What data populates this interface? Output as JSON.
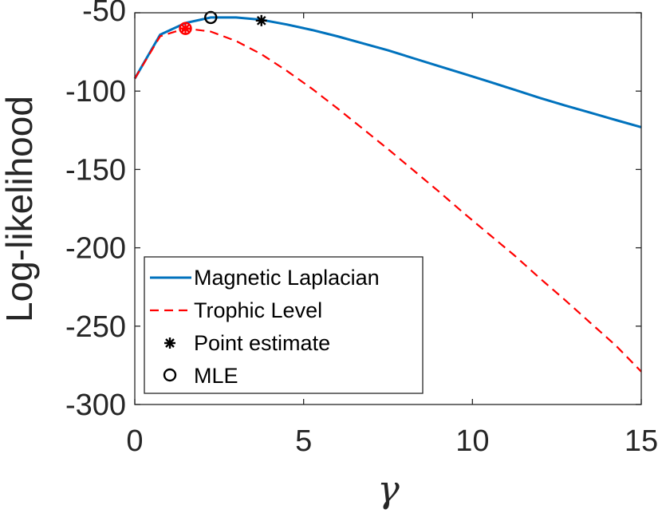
{
  "chart_data": {
    "type": "line",
    "title": "",
    "xlabel": "γ",
    "ylabel": "Log-likelihood",
    "xlim": [
      0,
      15
    ],
    "ylim": [
      -300,
      -50
    ],
    "xticks": [
      0,
      5,
      10,
      15
    ],
    "xtick_labels": [
      "0",
      "5",
      "10",
      "15"
    ],
    "yticks": [
      -50,
      -100,
      -150,
      -200,
      -250,
      -300
    ],
    "ytick_labels": [
      "-50",
      "-100",
      "-150",
      "-200",
      "-250",
      "-300"
    ],
    "grid": false,
    "legend_position": "bottom-left",
    "series": [
      {
        "name": "Magnetic Laplacian",
        "color": "#0072BD",
        "style": "solid",
        "x": [
          0,
          0.75,
          1.5,
          2.25,
          3.0,
          3.75,
          4.5,
          5.25,
          6.0,
          6.75,
          7.5,
          8.25,
          9.0,
          9.75,
          10.5,
          11.25,
          12.0,
          12.75,
          13.5,
          14.25,
          15.0
        ],
        "y": [
          -92,
          -64,
          -56.5,
          -53,
          -53,
          -54.5,
          -57.5,
          -61,
          -65,
          -69.5,
          -74,
          -79,
          -84,
          -89,
          -94,
          -99.2,
          -104.4,
          -109.2,
          -113.8,
          -118.5,
          -123
        ]
      },
      {
        "name": "Trophic Level",
        "color": "#FF0000",
        "style": "dashed",
        "x": [
          0,
          0.75,
          1.5,
          2.25,
          3.0,
          3.75,
          4.5,
          5.25,
          6.0,
          6.75,
          7.5,
          8.25,
          9.0,
          9.75,
          10.5,
          11.25,
          12.0,
          12.75,
          13.5,
          14.25,
          15.0
        ],
        "y": [
          -92,
          -65,
          -60,
          -62,
          -68,
          -76.5,
          -87,
          -98.5,
          -111,
          -124,
          -137,
          -150.5,
          -164,
          -178,
          -191.5,
          -205,
          -219.5,
          -233.5,
          -248,
          -262.5,
          -279
        ]
      }
    ],
    "markers": [
      {
        "name": "Point estimate",
        "series": "Magnetic Laplacian",
        "symbol": "asterisk",
        "color": "#000000",
        "x": 3.75,
        "y": -55
      },
      {
        "name": "MLE",
        "series": "Magnetic Laplacian",
        "symbol": "circle-open",
        "color": "#000000",
        "x": 2.25,
        "y": -53
      },
      {
        "name": "Point estimate",
        "series": "Trophic Level",
        "symbol": "asterisk",
        "color": "#FF0000",
        "x": 1.5,
        "y": -60
      },
      {
        "name": "MLE",
        "series": "Trophic Level",
        "symbol": "circle-open",
        "color": "#FF0000",
        "x": 1.5,
        "y": -60
      }
    ],
    "legend": [
      {
        "label": "Magnetic Laplacian",
        "symbol": "line-solid",
        "color": "#0072BD"
      },
      {
        "label": "Trophic Level",
        "symbol": "line-dashed",
        "color": "#FF0000"
      },
      {
        "label": "Point estimate",
        "symbol": "asterisk",
        "color": "#000000"
      },
      {
        "label": "MLE",
        "symbol": "circle-open",
        "color": "#000000"
      }
    ]
  }
}
